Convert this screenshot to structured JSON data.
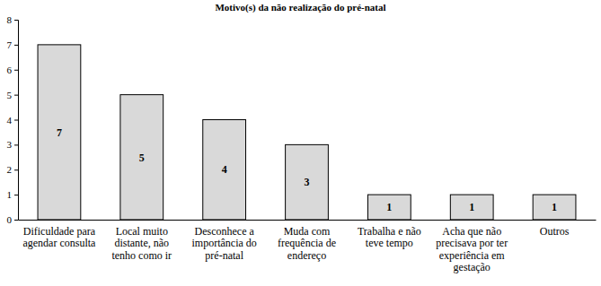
{
  "chart_data": {
    "type": "bar",
    "title": "Motivo(s) da não realização do pré-natal",
    "categories": [
      "Dificuldade para agendar consulta",
      "Local muito distante, não tenho como ir",
      "Desconhece a importância do pré-natal",
      "Muda com frequência de endereço",
      "Trabalha e não teve tempo",
      "Acha que não precisava por ter experiência em gestação",
      "Outros"
    ],
    "values": [
      7,
      5,
      4,
      3,
      1,
      1,
      1
    ],
    "color": "#d9d9d9",
    "ylim": [
      0,
      8
    ],
    "yticks": [
      0,
      1,
      2,
      3,
      4,
      5,
      6,
      7,
      8
    ],
    "grid": false,
    "data_labels": true
  }
}
